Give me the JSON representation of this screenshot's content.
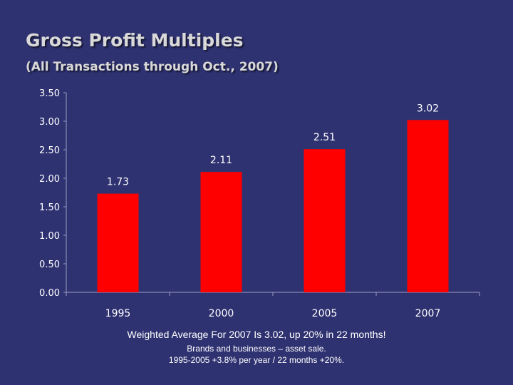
{
  "slide": {
    "title": "Gross Profit Multiples",
    "subtitle": "(All Transactions through Oct., 2007)",
    "footnote_main": "Weighted Average For 2007 Is 3.02, up 20% in 22 months!",
    "footnote_lines": [
      "Brands and businesses – asset sale.",
      "1995-2005 +3.8% per year / 22 months +20%."
    ]
  },
  "colors": {
    "background": "#2f3271",
    "bar": "#ff0000",
    "text": "#ffffff",
    "title": "#d9d9d9"
  },
  "chart_data": {
    "type": "bar",
    "title": "",
    "xlabel": "",
    "ylabel": "",
    "categories": [
      "1995",
      "2000",
      "2005",
      "2007"
    ],
    "values": [
      1.73,
      2.11,
      2.51,
      3.02
    ],
    "data_labels": [
      "1.73",
      "2.11",
      "2.51",
      "3.02"
    ],
    "ylim": [
      0,
      3.5
    ],
    "yticks": [
      "0.00",
      "0.50",
      "1.00",
      "1.50",
      "2.00",
      "2.50",
      "3.00",
      "3.50"
    ],
    "grid": false,
    "legend": "none"
  }
}
